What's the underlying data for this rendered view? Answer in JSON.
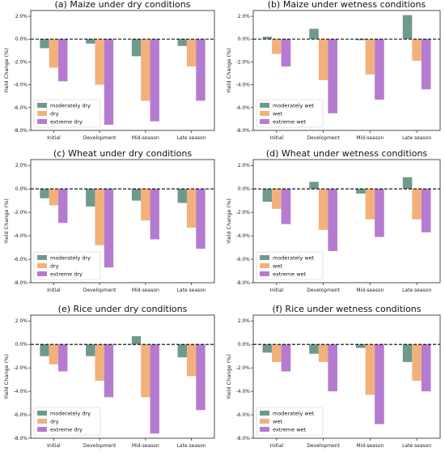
{
  "chart_data": [
    {
      "type": "bar",
      "title": "(a) Maize under dry conditions",
      "ylabel": "Yield Change (%)",
      "categories": [
        "Initial",
        "Development",
        "Mid-season",
        "Late season"
      ],
      "ylim": [
        -8.0,
        2.5
      ],
      "yticks": [
        "2.0%",
        "0.0%",
        "-2.0%",
        "-4.0%",
        "-6.0%",
        "-8.0%"
      ],
      "legend": "bottom-left",
      "series": [
        {
          "name": "moderately dry",
          "color": "#6e9a8c",
          "values": [
            -0.8,
            -0.4,
            -1.5,
            -0.6
          ]
        },
        {
          "name": "dry",
          "color": "#f2b17b",
          "values": [
            -2.5,
            -4.0,
            -5.4,
            -2.4
          ]
        },
        {
          "name": "extreme dry",
          "color": "#b57bd0",
          "values": [
            -3.7,
            -7.5,
            -7.2,
            -5.4
          ]
        }
      ]
    },
    {
      "type": "bar",
      "title": "(b)  Maize under wetness conditions",
      "ylabel": "Yield Change (%)",
      "categories": [
        "Initial",
        "Development",
        "Mid-season",
        "Late season"
      ],
      "ylim": [
        -8.0,
        2.5
      ],
      "yticks": [
        "2.0%",
        "0.0%",
        "-2.0%",
        "-4.0%",
        "-6.0%",
        "-8.0%"
      ],
      "legend": "bottom-left",
      "series": [
        {
          "name": "moderately wet",
          "color": "#6e9a8c",
          "values": [
            0.2,
            0.9,
            -0.1,
            2.1
          ]
        },
        {
          "name": "wet",
          "color": "#f2b17b",
          "values": [
            -1.3,
            -3.6,
            -3.1,
            -1.9
          ]
        },
        {
          "name": "extreme wet",
          "color": "#b57bd0",
          "values": [
            -2.4,
            -6.5,
            -5.3,
            -4.4
          ]
        }
      ]
    },
    {
      "type": "bar",
      "title": "(c)  Wheat under dry conditions",
      "ylabel": "Yield Change (%)",
      "categories": [
        "Initial",
        "Development",
        "Mid-season",
        "Late season"
      ],
      "ylim": [
        -8.0,
        2.5
      ],
      "yticks": [
        "2.0%",
        "0.0%",
        "-2.0%",
        "-4.0%",
        "-6.0%",
        "-8.0%"
      ],
      "legend": "bottom-left",
      "series": [
        {
          "name": "moderately dry",
          "color": "#6e9a8c",
          "values": [
            -0.8,
            -1.5,
            -1.0,
            -1.2
          ]
        },
        {
          "name": "dry",
          "color": "#f2b17b",
          "values": [
            -1.4,
            -4.8,
            -2.7,
            -3.3
          ]
        },
        {
          "name": "extreme dry",
          "color": "#b57bd0",
          "values": [
            -2.9,
            -6.7,
            -4.3,
            -5.1
          ]
        }
      ]
    },
    {
      "type": "bar",
      "title": "(d)  Wheat under wetness conditions",
      "ylabel": "Yield Change (%)",
      "categories": [
        "Initial",
        "Development",
        "Mid-season",
        "Late season"
      ],
      "ylim": [
        -8.0,
        2.5
      ],
      "yticks": [
        "2.0%",
        "0.0%",
        "-2.0%",
        "-4.0%",
        "-6.0%",
        "-8.0%"
      ],
      "legend": "bottom-left",
      "series": [
        {
          "name": "moderately wet",
          "color": "#6e9a8c",
          "values": [
            -1.1,
            0.6,
            -0.4,
            1.0
          ]
        },
        {
          "name": "wet",
          "color": "#f2b17b",
          "values": [
            -1.7,
            -3.5,
            -2.6,
            -2.6
          ]
        },
        {
          "name": "extreme wet",
          "color": "#b57bd0",
          "values": [
            -3.0,
            -5.3,
            -4.1,
            -3.7
          ]
        }
      ]
    },
    {
      "type": "bar",
      "title": "(e)  Rice under dry conditions",
      "ylabel": "Yield Change (%)",
      "categories": [
        "Initial",
        "Development",
        "Mid-season",
        "Late season"
      ],
      "ylim": [
        -8.0,
        2.5
      ],
      "yticks": [
        "2.0%",
        "0.0%",
        "-2.0%",
        "-4.0%",
        "-6.0%",
        "-8.0%"
      ],
      "legend": "bottom-left",
      "series": [
        {
          "name": "moderately dry",
          "color": "#6e9a8c",
          "values": [
            -1.0,
            -1.0,
            0.7,
            -1.1
          ]
        },
        {
          "name": "dry",
          "color": "#f2b17b",
          "values": [
            -1.7,
            -3.1,
            -4.5,
            -2.7
          ]
        },
        {
          "name": "extreme dry",
          "color": "#b57bd0",
          "values": [
            -2.3,
            -4.5,
            -7.6,
            -5.6
          ]
        }
      ]
    },
    {
      "type": "bar",
      "title": "(f)  Rice under wetness conditions",
      "ylabel": "Yield Change (%)",
      "categories": [
        "Initial",
        "Development",
        "Mid-season",
        "Late season"
      ],
      "ylim": [
        -8.0,
        2.5
      ],
      "yticks": [
        "2.0%",
        "0.0%",
        "-2.0%",
        "-4.0%",
        "-6.0%",
        "-8.0%"
      ],
      "legend": "bottom-left",
      "series": [
        {
          "name": "moderately wet",
          "color": "#6e9a8c",
          "values": [
            -0.7,
            -0.8,
            -0.3,
            -1.5
          ]
        },
        {
          "name": "wet",
          "color": "#f2b17b",
          "values": [
            -1.5,
            -1.5,
            -4.3,
            -3.1
          ]
        },
        {
          "name": "extreme wet",
          "color": "#b57bd0",
          "values": [
            -2.3,
            -4.0,
            -6.8,
            -4.0
          ]
        }
      ]
    }
  ]
}
